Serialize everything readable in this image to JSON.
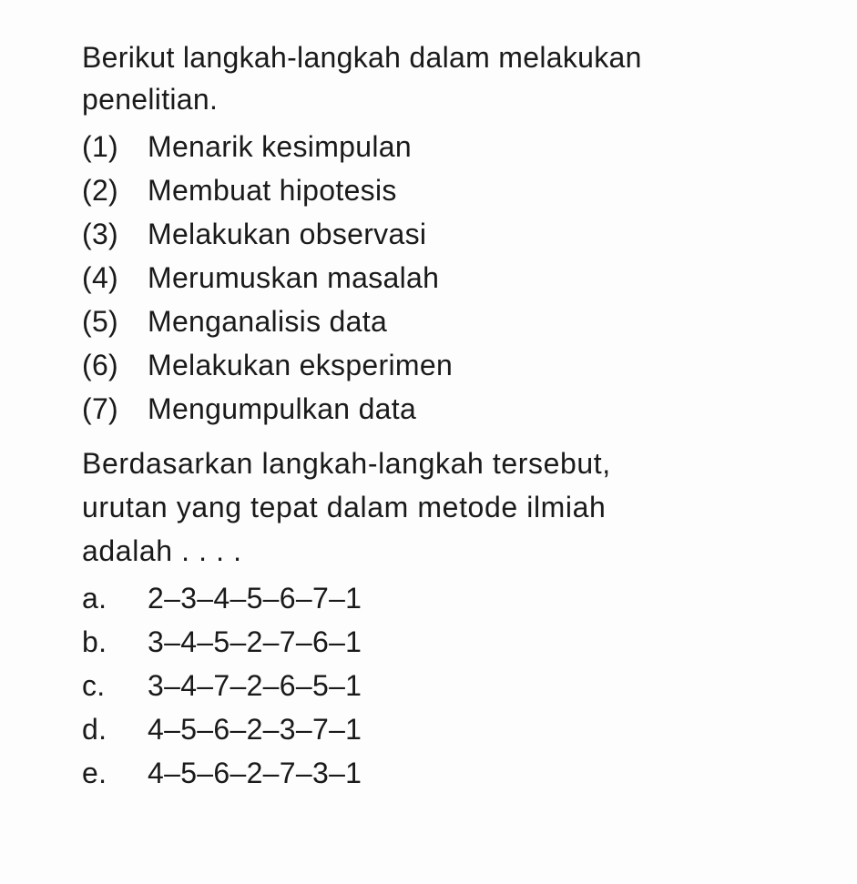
{
  "intro_line1": "Berikut langkah-langkah dalam melakukan",
  "intro_line2": "penelitian.",
  "steps": [
    {
      "num": "(1)",
      "text": "Menarik kesimpulan"
    },
    {
      "num": "(2)",
      "text": "Membuat hipotesis"
    },
    {
      "num": "(3)",
      "text": "Melakukan observasi"
    },
    {
      "num": "(4)",
      "text": "Merumuskan masalah"
    },
    {
      "num": "(5)",
      "text": "Menganalisis data"
    },
    {
      "num": "(6)",
      "text": "Melakukan eksperimen"
    },
    {
      "num": "(7)",
      "text": "Mengumpulkan data"
    }
  ],
  "question_line1": "Berdasarkan langkah-langkah tersebut,",
  "question_line2": "urutan yang tepat dalam metode ilmiah",
  "question_line3": "adalah . . . .",
  "options": [
    {
      "letter": "a.",
      "text": "2–3–4–5–6–7–1"
    },
    {
      "letter": "b.",
      "text": "3–4–5–2–7–6–1"
    },
    {
      "letter": "c.",
      "text": "3–4–7–2–6–5–1"
    },
    {
      "letter": "d.",
      "text": "4–5–6–2–3–7–1"
    },
    {
      "letter": "e.",
      "text": "4–5–6–2–7–3–1"
    }
  ],
  "colors": {
    "background": "#fdfdfd",
    "text": "#1a1a1a"
  },
  "typography": {
    "font_family": "Arial, Helvetica, sans-serif",
    "font_size_pt": 24,
    "line_height": 1.5
  }
}
